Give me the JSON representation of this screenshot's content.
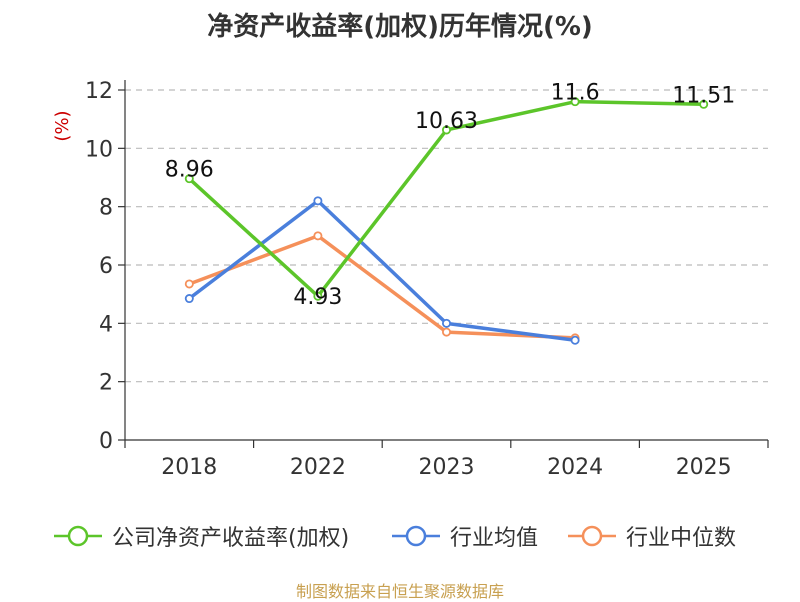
{
  "chart_data": {
    "type": "line",
    "title": "净资产收益率(加权)历年情况(%)",
    "ylabel": "(%)",
    "xlabel": "",
    "categories": [
      "2018",
      "2022",
      "2023",
      "2024",
      "2025"
    ],
    "ylim": [
      0,
      12
    ],
    "yticks": [
      0,
      2,
      4,
      6,
      8,
      10,
      12
    ],
    "grid": true,
    "series": [
      {
        "name": "公司净资产收益率(加权)",
        "color": "#5cc52a",
        "values": [
          8.96,
          4.93,
          10.63,
          11.6,
          11.51
        ],
        "labels": [
          "8.96",
          "4.93",
          "10.63",
          "11.6",
          "11.51"
        ]
      },
      {
        "name": "行业均值",
        "color": "#4a7fdc",
        "values": [
          4.85,
          8.2,
          4.0,
          3.42,
          null
        ]
      },
      {
        "name": "行业中位数",
        "color": "#f5905a",
        "values": [
          5.35,
          7.0,
          3.7,
          3.5,
          null
        ]
      }
    ],
    "legend_position": "bottom"
  },
  "source": "制图数据来自恒生聚源数据库"
}
